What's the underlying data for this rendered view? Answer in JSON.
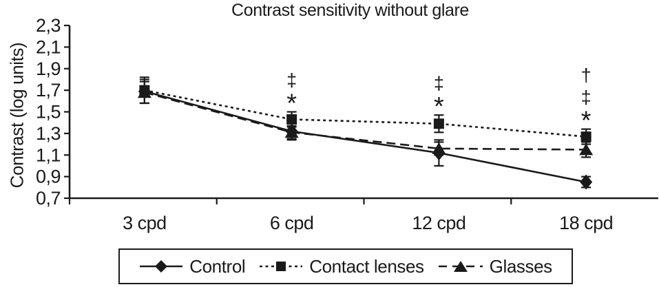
{
  "title": "Contrast sensitivity without glare",
  "chart_data": {
    "type": "line",
    "title": "Contrast sensitivity without glare",
    "xlabel": "",
    "ylabel": "Contrast (log units)",
    "categories": [
      "3 cpd",
      "6 cpd",
      "12 cpd",
      "18 cpd"
    ],
    "y_ticks": [
      "0,7",
      "0,9",
      "1,1",
      "1,3",
      "1,5",
      "1,7",
      "1,9",
      "2,1",
      "2,3"
    ],
    "ylim": [
      0.7,
      2.3
    ],
    "y_step": 0.2,
    "decimal_separator": ",",
    "grid": false,
    "error_bars": true,
    "legend_position": "bottom",
    "series": [
      {
        "name": "Control",
        "marker": "diamond",
        "line_style": "solid",
        "values": [
          1.69,
          1.32,
          1.12,
          0.85
        ],
        "errors": [
          0.11,
          0.08,
          0.12,
          0.05
        ]
      },
      {
        "name": "Contact lenses",
        "marker": "square",
        "line_style": "dotted",
        "values": [
          1.7,
          1.43,
          1.39,
          1.27
        ],
        "errors": [
          0.12,
          0.07,
          0.08,
          0.07
        ]
      },
      {
        "name": "Glasses",
        "marker": "triangle",
        "line_style": "dashed",
        "values": [
          1.68,
          1.31,
          1.16,
          1.15
        ],
        "errors": [
          0.1,
          0.06,
          0.06,
          0.07
        ]
      }
    ],
    "annotations": [
      {
        "category": "6 cpd",
        "symbols": [
          "‡",
          "*"
        ]
      },
      {
        "category": "12 cpd",
        "symbols": [
          "‡",
          "*"
        ]
      },
      {
        "category": "18 cpd",
        "symbols": [
          "†",
          "‡",
          "*"
        ]
      }
    ],
    "colors": {
      "line": "#1a1a1a",
      "text": "#1a1a1a",
      "background": "#ffffff"
    }
  }
}
